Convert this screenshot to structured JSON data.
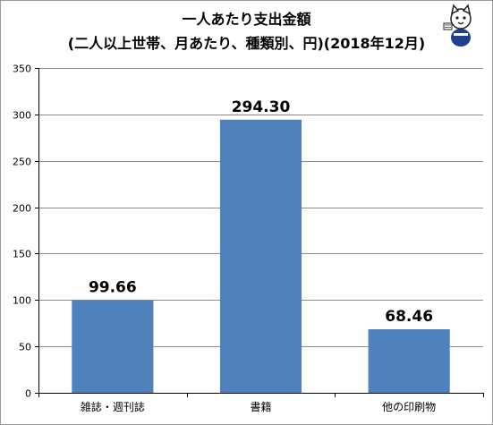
{
  "chart_data": {
    "type": "bar",
    "title_lines": [
      "一人あたり支出金額",
      "(二人以上世帯、月あたり、種類別、円)(2018年12月)"
    ],
    "categories": [
      "雑誌・週刊誌",
      "書籍",
      "他の印刷物"
    ],
    "values": [
      99.66,
      294.3,
      68.46
    ],
    "value_labels": [
      "99.66",
      "294.30",
      "68.46"
    ],
    "ylim": [
      0,
      350
    ],
    "yticks": [
      "0",
      "50",
      "100",
      "150",
      "200",
      "250",
      "300",
      "350"
    ],
    "xlabel": "",
    "ylabel": "",
    "grid": true,
    "legend": "none",
    "bar_color": "#4f81bd",
    "grid_color": "#8c8c8c"
  },
  "mascot_icon": "cat-mascot-icon"
}
